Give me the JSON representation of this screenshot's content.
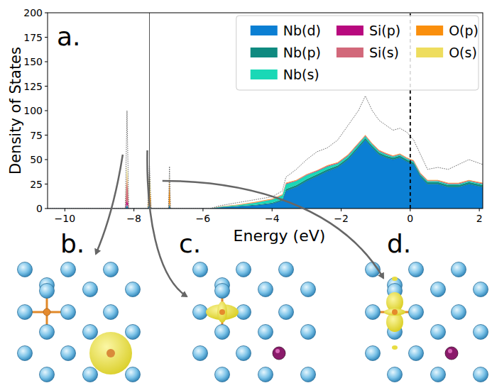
{
  "chart_data": {
    "type": "area",
    "stacked": true,
    "panel_label": "a.",
    "x_label": "Energy (eV)",
    "y_label": "Density of States",
    "xlim": [
      -10.5,
      2.1
    ],
    "ylim": [
      0,
      200
    ],
    "xticks": [
      {
        "value": -10,
        "label": "−10"
      },
      {
        "value": -8,
        "label": "−8"
      },
      {
        "value": -6,
        "label": "−6"
      },
      {
        "value": -4,
        "label": "−4"
      },
      {
        "value": -2,
        "label": "−2"
      },
      0,
      2
    ],
    "yticks": [
      0,
      25,
      50,
      75,
      100,
      125,
      150,
      175,
      200
    ],
    "legend": "upper right",
    "x": [
      -10.5,
      -8.25,
      -8.2,
      -8.15,
      -7.6,
      -7.55,
      -7.5,
      -7.0,
      -6.97,
      -6.94,
      -5.8,
      -5.5,
      -5.0,
      -4.5,
      -4.0,
      -3.7,
      -3.6,
      -3.3,
      -3.0,
      -2.7,
      -2.4,
      -2.1,
      -1.8,
      -1.5,
      -1.3,
      -1.1,
      -0.9,
      -0.7,
      -0.5,
      -0.3,
      -0.1,
      0.1,
      0.3,
      0.5,
      0.8,
      1.1,
      1.4,
      1.7,
      2.1
    ],
    "series": [
      {
        "name": "Nb(d)",
        "color": "#0b7fd3",
        "values": [
          0,
          0,
          2,
          0,
          0,
          3,
          0,
          0,
          3,
          0,
          0,
          1,
          2,
          3,
          5,
          8,
          18,
          22,
          28,
          33,
          38,
          42,
          50,
          62,
          70,
          62,
          55,
          52,
          50,
          52,
          48,
          45,
          32,
          25,
          25,
          22,
          22,
          25,
          22
        ]
      },
      {
        "name": "Nb(p)",
        "color": "#0f8a80",
        "values": [
          0,
          0,
          1,
          0,
          0,
          1,
          0,
          0,
          1,
          0,
          0,
          0.3,
          0.5,
          0.8,
          1,
          1.5,
          2,
          2,
          2,
          2,
          2,
          2,
          2,
          2,
          2,
          2,
          2,
          2,
          2,
          2,
          2,
          2,
          2,
          2,
          2,
          2,
          2,
          2,
          2
        ]
      },
      {
        "name": "Nb(s)",
        "color": "#1ad8b6",
        "values": [
          0,
          0,
          1,
          0,
          0,
          2,
          0,
          0,
          1,
          0,
          0,
          0.5,
          1,
          2,
          3,
          4,
          5,
          4,
          4,
          3,
          3,
          2,
          2,
          2,
          2,
          1.5,
          1.5,
          1.5,
          1,
          1,
          1,
          1,
          1,
          1,
          1,
          1,
          1,
          1,
          1
        ]
      },
      {
        "name": "Si(p)",
        "color": "#b8097e",
        "values": [
          0,
          0,
          5,
          0,
          0,
          1,
          0,
          0,
          1,
          0,
          0,
          0,
          0,
          0.2,
          0.3,
          0.3,
          0.5,
          0.5,
          0.5,
          0.5,
          0.5,
          0.5,
          0.5,
          0.5,
          0.5,
          0.5,
          0.5,
          0.5,
          0.5,
          0.5,
          0.5,
          0.5,
          0.5,
          0.5,
          0.5,
          0.5,
          0.5,
          0.5,
          0.5
        ]
      },
      {
        "name": "Si(s)",
        "color": "#d2687a",
        "values": [
          0,
          0,
          25,
          0,
          0,
          0,
          0,
          0,
          0,
          0,
          0,
          0.2,
          0.2,
          0.2,
          0.2,
          0.2,
          0.2,
          0.2,
          0.2,
          0.2,
          0.2,
          0.2,
          0.2,
          0.2,
          0.2,
          0.2,
          0.2,
          0.2,
          0.2,
          0.2,
          0.2,
          0.2,
          0.2,
          0.2,
          0.2,
          0.2,
          0.2,
          0.2,
          0.2
        ]
      },
      {
        "name": "O(p)",
        "color": "#fa8f0d",
        "values": [
          0,
          0,
          2,
          0,
          0,
          20,
          0,
          0,
          25,
          0,
          0,
          0.2,
          0.3,
          0.5,
          0.5,
          0.5,
          0.5,
          0.5,
          0.5,
          0.5,
          0.5,
          0.5,
          0.5,
          0.5,
          0.5,
          0.5,
          0.5,
          0.5,
          0.5,
          0.5,
          0.5,
          0.5,
          0.5,
          0.5,
          0.5,
          0.5,
          0.5,
          0.5,
          0.5
        ]
      },
      {
        "name": "O(s)",
        "color": "#eedd5e",
        "values": [
          0,
          0,
          8,
          0,
          0,
          15,
          0,
          0,
          2,
          0,
          0,
          0,
          0,
          0,
          0,
          0,
          0,
          0,
          0,
          0,
          0,
          0,
          0,
          0,
          0,
          0,
          0,
          0,
          0,
          0,
          0,
          0,
          0,
          0,
          0,
          0,
          0,
          0,
          0
        ]
      }
    ],
    "total": {
      "color": "#555555",
      "line_style": "dotted",
      "values": [
        0,
        0,
        100,
        0,
        0,
        45,
        0,
        0,
        43,
        0,
        0,
        3,
        6,
        9,
        12,
        18,
        32,
        40,
        50,
        58,
        62,
        70,
        85,
        100,
        115,
        100,
        90,
        85,
        80,
        82,
        78,
        70,
        55,
        40,
        42,
        40,
        45,
        50,
        45
      ]
    },
    "ref_lines": [
      {
        "value": -7.55,
        "color": "#555555",
        "line_style": "solid"
      },
      {
        "value": 0,
        "color": "#000000",
        "line_style": "dashed"
      }
    ]
  },
  "panels": [
    {
      "label": "b.",
      "energy": -8.2
    },
    {
      "label": "c.",
      "energy": -7.55
    },
    {
      "label": "d.",
      "energy": -6.97
    }
  ]
}
